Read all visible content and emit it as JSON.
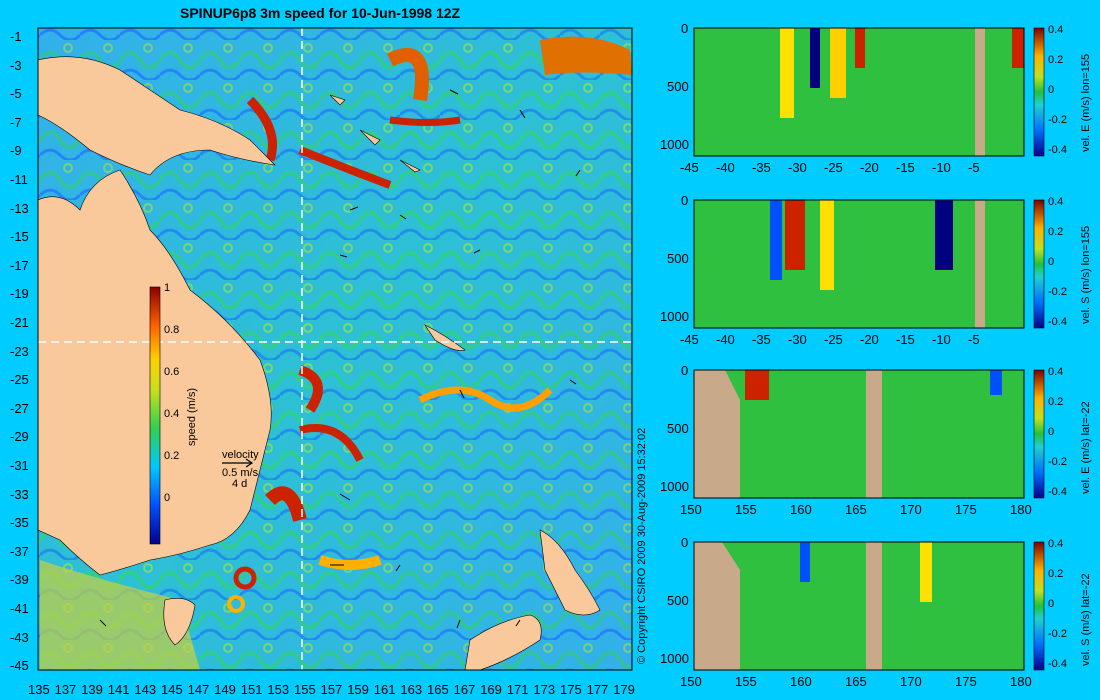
{
  "map": {
    "title": "SPINUP6p8 3m speed for 10-Jun-1998 12Z",
    "lat_ticks": [
      "-1",
      "-3",
      "-5",
      "-7",
      "-9",
      "-11",
      "-13",
      "-15",
      "-17",
      "-19",
      "-21",
      "-23",
      "-25",
      "-27",
      "-29",
      "-31",
      "-33",
      "-35",
      "-37",
      "-39",
      "-41",
      "-43",
      "-45"
    ],
    "lon_ticks": [
      "135",
      "137",
      "139",
      "141",
      "143",
      "145",
      "147",
      "149",
      "151",
      "153",
      "155",
      "157",
      "159",
      "161",
      "163",
      "165",
      "167",
      "169",
      "171",
      "173",
      "175",
      "177",
      "179"
    ],
    "colorbar": {
      "label": "speed (m/s)",
      "ticks": [
        "1",
        "0.8",
        "0.6",
        "0.4",
        "0.2",
        "0"
      ]
    },
    "velocity_key": {
      "title": "velocity",
      "speed": "0.5 m/s",
      "duration": "4 d"
    },
    "copyright": "© Copyright CSIRO 2009   30-Aug-2009 15:32:02",
    "colors": {
      "land": "#f9c99c",
      "background": "#00ccff",
      "section_land": "#c8a98a"
    }
  },
  "sections": [
    {
      "colorbar_label": "vel. E (m/s) lon=155",
      "x_ticks": [
        "-45",
        "-40",
        "-35",
        "-30",
        "-25",
        "-20",
        "-15",
        "-10",
        "-5"
      ],
      "y_ticks": [
        "0",
        "500",
        "1000"
      ],
      "cbar_ticks": [
        "0.4",
        "0.2",
        "0",
        "-0.2",
        "-0.4"
      ]
    },
    {
      "colorbar_label": "vel. S (m/s) lon=155",
      "x_ticks": [
        "-45",
        "-40",
        "-35",
        "-30",
        "-25",
        "-20",
        "-15",
        "-10",
        "-5"
      ],
      "y_ticks": [
        "0",
        "500",
        "1000"
      ],
      "cbar_ticks": [
        "0.4",
        "0.2",
        "0",
        "-0.2",
        "-0.4"
      ]
    },
    {
      "colorbar_label": "vel. E (m/s) lat=-22",
      "x_ticks": [
        "150",
        "155",
        "160",
        "165",
        "170",
        "175",
        "180"
      ],
      "y_ticks": [
        "0",
        "500",
        "1000"
      ],
      "cbar_ticks": [
        "0.4",
        "0.2",
        "0",
        "-0.2",
        "-0.4"
      ]
    },
    {
      "colorbar_label": "vel. S (m/s) lat=-22",
      "x_ticks": [
        "150",
        "155",
        "160",
        "165",
        "170",
        "175",
        "180"
      ],
      "y_ticks": [
        "0",
        "500",
        "1000"
      ],
      "cbar_ticks": [
        "0.4",
        "0.2",
        "0",
        "-0.2",
        "-0.4"
      ]
    }
  ]
}
